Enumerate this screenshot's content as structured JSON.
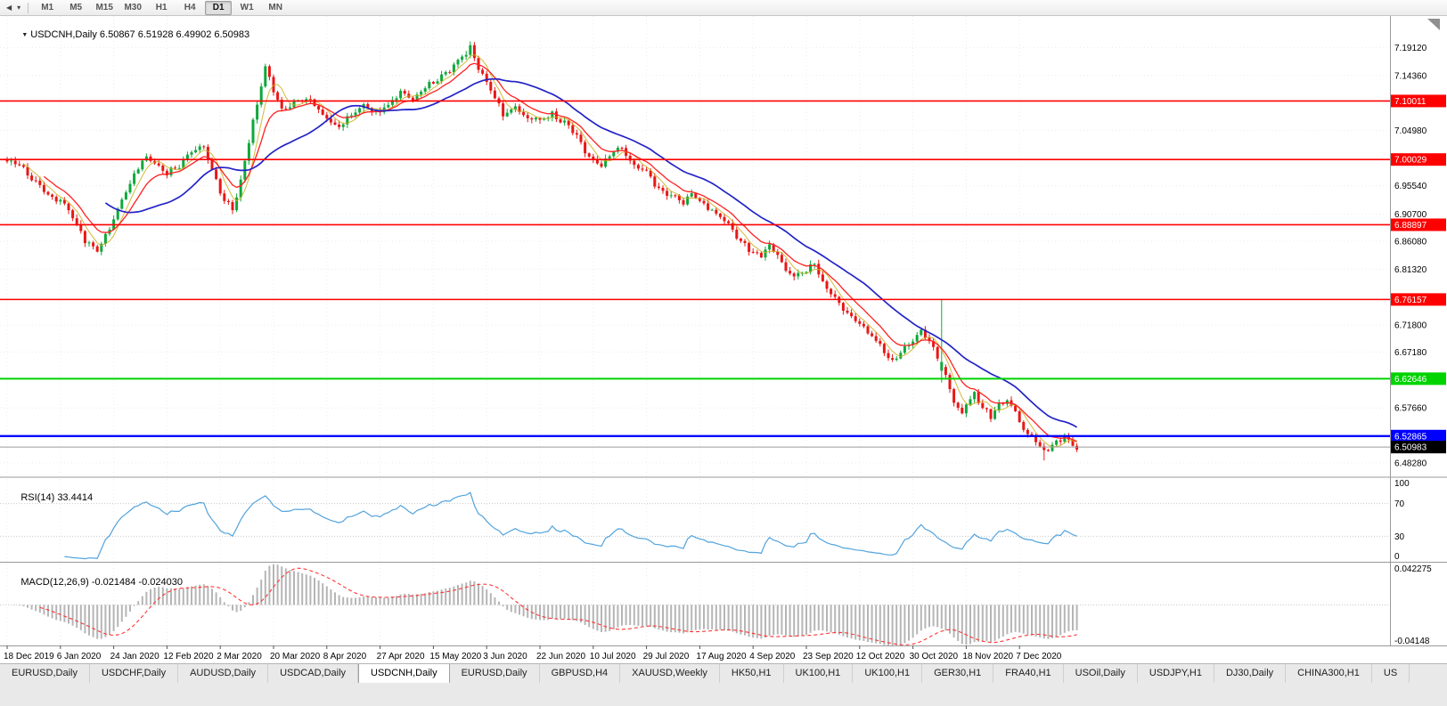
{
  "toolbar": {
    "timeframes": [
      "M1",
      "M5",
      "M15",
      "M30",
      "H1",
      "H4",
      "D1",
      "W1",
      "MN"
    ],
    "active_timeframe": "D1"
  },
  "main": {
    "symbol_label": "USDCNH,Daily",
    "ohlc": "6.50867 6.51928 6.49902 6.50983"
  },
  "rsi": {
    "label": "RSI(14)",
    "value": "33.4414",
    "axis_labels": [
      "100",
      "70",
      "30",
      "0"
    ],
    "level_lines": [
      70,
      30
    ]
  },
  "macd": {
    "label": "MACD(12,26,9)",
    "values": "-0.021484 -0.024030",
    "axis_top": "0.042275",
    "axis_bottom": "-0.04148"
  },
  "price_axis_labels": [
    "7.19120",
    "7.14360",
    "7.04980",
    "6.95540",
    "6.90700",
    "6.86080",
    "6.81320",
    "6.71800",
    "6.67180",
    "6.57660",
    "6.48280"
  ],
  "dates": [
    "18 Dec 2019",
    "6 Jan 2020",
    "24 Jan 2020",
    "12 Feb 2020",
    "2 Mar 2020",
    "20 Mar 2020",
    "8 Apr 2020",
    "27 Apr 2020",
    "15 May 2020",
    "3 Jun 2020",
    "22 Jun 2020",
    "10 Jul 2020",
    "29 Jul 2020",
    "17 Aug 2020",
    "4 Sep 2020",
    "23 Sep 2020",
    "12 Oct 2020",
    "30 Oct 2020",
    "18 Nov 2020",
    "7 Dec 2020"
  ],
  "tabs": [
    {
      "label": "EURUSD,Daily"
    },
    {
      "label": "USDCHF,Daily"
    },
    {
      "label": "AUDUSD,Daily"
    },
    {
      "label": "USDCAD,Daily"
    },
    {
      "label": "USDCNH,Daily",
      "active": true
    },
    {
      "label": "EURUSD,Daily"
    },
    {
      "label": "GBPUSD,H4"
    },
    {
      "label": "XAUUSD,Weekly"
    },
    {
      "label": "HK50,H1"
    },
    {
      "label": "UK100,H1"
    },
    {
      "label": "UK100,H1"
    },
    {
      "label": "GER30,H1"
    },
    {
      "label": "FRA40,H1"
    },
    {
      "label": "USOil,Daily"
    },
    {
      "label": "USDJPY,H1"
    },
    {
      "label": "DJ30,Daily"
    },
    {
      "label": "CHINA300,H1"
    },
    {
      "label": "US"
    }
  ],
  "colors": {
    "candle_up": "#0fa83b",
    "candle_dn": "#e81717",
    "ma_red": "#ff2020",
    "ma_blue": "#2323c8",
    "ma_yellow": "#c9ae16",
    "rsi": "#52a3dc",
    "macd_hist": "#b5b5b5",
    "macd_signal": "#ff3333",
    "level_red": "#ff0000",
    "level_green": "#00d400",
    "level_blue": "#0000ff",
    "current_price_badge": "#000000"
  },
  "chart_data": {
    "type": "candlestick",
    "symbol": "USDCNH",
    "period": "Daily",
    "ohlc_display": {
      "open": "6.50867",
      "high": "6.51928",
      "low": "6.49902",
      "close": "6.50983"
    },
    "bars": 262,
    "price_range": [
      6.46,
      7.245
    ],
    "macd_range": [
      -0.0415,
      0.0423
    ],
    "close_keyframes": [
      [
        0,
        7.0
      ],
      [
        3,
        6.992
      ],
      [
        6,
        6.968
      ],
      [
        10,
        6.94
      ],
      [
        13,
        6.93
      ],
      [
        16,
        6.902
      ],
      [
        19,
        6.86
      ],
      [
        22,
        6.846
      ],
      [
        24,
        6.868
      ],
      [
        27,
        6.916
      ],
      [
        30,
        6.96
      ],
      [
        33,
        7.002
      ],
      [
        36,
        6.996
      ],
      [
        39,
        6.978
      ],
      [
        42,
        6.99
      ],
      [
        45,
        7.012
      ],
      [
        48,
        7.022
      ],
      [
        50,
        6.984
      ],
      [
        53,
        6.93
      ],
      [
        55,
        6.914
      ],
      [
        57,
        6.962
      ],
      [
        59,
        7.03
      ],
      [
        61,
        7.096
      ],
      [
        63,
        7.158
      ],
      [
        65,
        7.114
      ],
      [
        67,
        7.086
      ],
      [
        70,
        7.096
      ],
      [
        73,
        7.104
      ],
      [
        76,
        7.086
      ],
      [
        78,
        7.068
      ],
      [
        81,
        7.056
      ],
      [
        84,
        7.076
      ],
      [
        87,
        7.09
      ],
      [
        90,
        7.08
      ],
      [
        93,
        7.094
      ],
      [
        96,
        7.114
      ],
      [
        99,
        7.104
      ],
      [
        102,
        7.124
      ],
      [
        105,
        7.136
      ],
      [
        108,
        7.154
      ],
      [
        111,
        7.176
      ],
      [
        113,
        7.192
      ],
      [
        115,
        7.156
      ],
      [
        117,
        7.132
      ],
      [
        119,
        7.106
      ],
      [
        121,
        7.076
      ],
      [
        124,
        7.088
      ],
      [
        127,
        7.072
      ],
      [
        130,
        7.068
      ],
      [
        133,
        7.078
      ],
      [
        136,
        7.062
      ],
      [
        139,
        7.04
      ],
      [
        141,
        7.016
      ],
      [
        143,
        7.0
      ],
      [
        145,
        6.992
      ],
      [
        147,
        7.006
      ],
      [
        149,
        7.022
      ],
      [
        151,
        7.01
      ],
      [
        153,
        6.992
      ],
      [
        156,
        6.976
      ],
      [
        159,
        6.952
      ],
      [
        162,
        6.938
      ],
      [
        165,
        6.928
      ],
      [
        167,
        6.944
      ],
      [
        169,
        6.93
      ],
      [
        172,
        6.912
      ],
      [
        175,
        6.898
      ],
      [
        177,
        6.88
      ],
      [
        179,
        6.862
      ],
      [
        182,
        6.842
      ],
      [
        184,
        6.838
      ],
      [
        186,
        6.852
      ],
      [
        188,
        6.838
      ],
      [
        190,
        6.812
      ],
      [
        192,
        6.798
      ],
      [
        195,
        6.812
      ],
      [
        197,
        6.824
      ],
      [
        199,
        6.792
      ],
      [
        201,
        6.772
      ],
      [
        203,
        6.752
      ],
      [
        205,
        6.736
      ],
      [
        208,
        6.718
      ],
      [
        211,
        6.7
      ],
      [
        214,
        6.672
      ],
      [
        216,
        6.656
      ],
      [
        218,
        6.672
      ],
      [
        221,
        6.692
      ],
      [
        223,
        6.712
      ],
      [
        225,
        6.69
      ],
      [
        227,
        6.662
      ],
      [
        229,
        6.63
      ],
      [
        231,
        6.586
      ],
      [
        233,
        6.57
      ],
      [
        234,
        6.582
      ],
      [
        236,
        6.6
      ],
      [
        238,
        6.578
      ],
      [
        240,
        6.562
      ],
      [
        242,
        6.58
      ],
      [
        244,
        6.592
      ],
      [
        246,
        6.566
      ],
      [
        248,
        6.538
      ],
      [
        250,
        6.528
      ],
      [
        252,
        6.512
      ],
      [
        254,
        6.502
      ],
      [
        256,
        6.518
      ],
      [
        258,
        6.528
      ],
      [
        260,
        6.512
      ],
      [
        261,
        6.51
      ]
    ],
    "special_candles": [
      {
        "i": 228,
        "o": 6.64,
        "h": 6.763,
        "l": 6.62,
        "c": 6.655
      },
      {
        "i": 253,
        "l": 6.487
      }
    ],
    "horizontal_lines": [
      {
        "price": "7.10011",
        "value": 7.10011,
        "color": "#ff0000",
        "width": 1.6
      },
      {
        "price": "7.00029",
        "value": 7.00029,
        "color": "#ff0000",
        "width": 1.6
      },
      {
        "price": "6.88897",
        "value": 6.88897,
        "color": "#ff0000",
        "width": 1.6
      },
      {
        "price": "6.76157",
        "value": 6.76157,
        "color": "#ff0000",
        "width": 1.6
      },
      {
        "price": "6.62646",
        "value": 6.62646,
        "color": "#00d400",
        "width": 2.0
      },
      {
        "price": "6.52865",
        "value": 6.52865,
        "color": "#0000ff",
        "width": 2.4
      }
    ],
    "current_price": "6.50983",
    "current_price_value": 6.50983,
    "indicators": {
      "rsi_period": 14,
      "macd": [
        12,
        26,
        9
      ],
      "ma_fast_red": 10,
      "ma_slow_blue": 25,
      "ma_yellow": 5
    }
  }
}
